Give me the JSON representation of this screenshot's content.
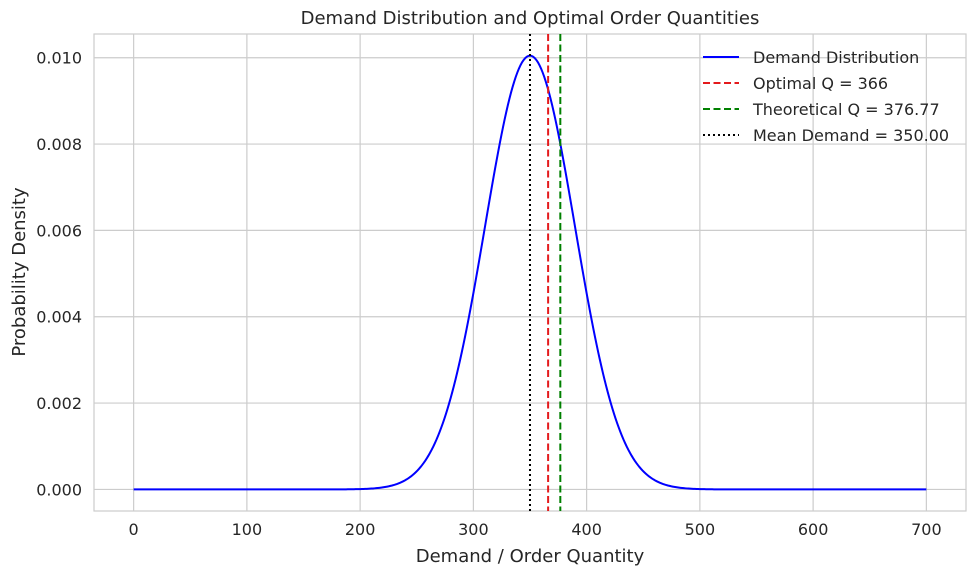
{
  "chart_data": {
    "type": "line",
    "title": "Demand Distribution and Optimal Order Quantities",
    "xlabel": "Demand / Order Quantity",
    "ylabel": "Probability Density",
    "xlim": [
      -35,
      735
    ],
    "ylim": [
      -0.0005,
      0.01055
    ],
    "x_ticks": [
      0,
      100,
      200,
      300,
      400,
      500,
      600,
      700
    ],
    "y_ticks": [
      0.0,
      0.002,
      0.004,
      0.006,
      0.008,
      0.01
    ],
    "x_tick_labels": [
      "0",
      "100",
      "200",
      "300",
      "400",
      "500",
      "600",
      "700"
    ],
    "y_tick_labels": [
      "0.000",
      "0.002",
      "0.004",
      "0.006",
      "0.008",
      "0.010"
    ],
    "grid": true,
    "legend_position": "top-right",
    "series": [
      {
        "name": "Demand Distribution",
        "kind": "normal-pdf",
        "color": "#0000ff",
        "x_range": [
          0,
          700
        ],
        "mean": 350,
        "std": 39.7
      }
    ],
    "vlines": [
      {
        "name": "Optimal Q = 366",
        "x": 366,
        "color": "#e41a1c",
        "style": "dashed"
      },
      {
        "name": "Theoretical Q = 376.77",
        "x": 376.77,
        "color": "#008000",
        "style": "dashed"
      },
      {
        "name": "Mean Demand = 350.00",
        "x": 350,
        "color": "#000000",
        "style": "dotted"
      }
    ]
  }
}
